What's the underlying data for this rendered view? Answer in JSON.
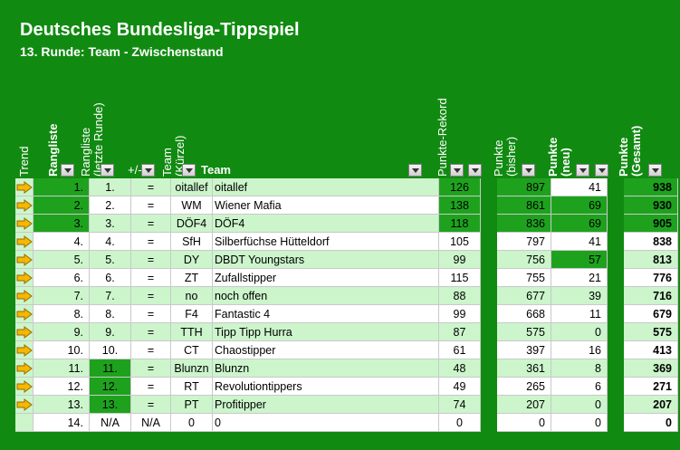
{
  "title": "Deutsches Bundesliga-Tippspiel",
  "subtitle": "13. Runde: Team - Zwischenstand",
  "headers": {
    "trend": "Trend",
    "rangliste": "Rangliste",
    "rangliste_letzte": "Rangliste\n(letzte Runde)",
    "plusminus": "+/-",
    "team_kurz": "Team\n(Kürzel)",
    "team": "Team",
    "punkte_rekord": "Punkte-Rekord",
    "punkte_bisher": "Punkte\n(bisher)",
    "punkte_neu": "Punkte\n(neu)",
    "punkte_gesamt": "Punkte\n(Gesamt)"
  },
  "colors": {
    "background": "#118a11",
    "light_row": "#ccf5cc",
    "highlight": "#1ea21e",
    "white": "#ffffff"
  },
  "trend_icon": "right-arrow-icon",
  "rows": [
    {
      "rank": "1.",
      "prev": "1.",
      "diff": "=",
      "short": "oitallef",
      "team": "oitallef",
      "rekord": "126",
      "bisher": "897",
      "neu": "41",
      "gesamt": "938"
    },
    {
      "rank": "2.",
      "prev": "2.",
      "diff": "=",
      "short": "WM",
      "team": "Wiener Mafia",
      "rekord": "138",
      "bisher": "861",
      "neu": "69",
      "gesamt": "930"
    },
    {
      "rank": "3.",
      "prev": "3.",
      "diff": "=",
      "short": "DÖF4",
      "team": "DÖF4",
      "rekord": "118",
      "bisher": "836",
      "neu": "69",
      "gesamt": "905"
    },
    {
      "rank": "4.",
      "prev": "4.",
      "diff": "=",
      "short": "SfH",
      "team": "Silberfüchse Hütteldorf",
      "rekord": "105",
      "bisher": "797",
      "neu": "41",
      "gesamt": "838"
    },
    {
      "rank": "5.",
      "prev": "5.",
      "diff": "=",
      "short": "DY",
      "team": "DBDT Youngstars",
      "rekord": "99",
      "bisher": "756",
      "neu": "57",
      "gesamt": "813"
    },
    {
      "rank": "6.",
      "prev": "6.",
      "diff": "=",
      "short": "ZT",
      "team": "Zufallstipper",
      "rekord": "115",
      "bisher": "755",
      "neu": "21",
      "gesamt": "776"
    },
    {
      "rank": "7.",
      "prev": "7.",
      "diff": "=",
      "short": "no",
      "team": "noch offen",
      "rekord": "88",
      "bisher": "677",
      "neu": "39",
      "gesamt": "716"
    },
    {
      "rank": "8.",
      "prev": "8.",
      "diff": "=",
      "short": "F4",
      "team": "Fantastic 4",
      "rekord": "99",
      "bisher": "668",
      "neu": "11",
      "gesamt": "679"
    },
    {
      "rank": "9.",
      "prev": "9.",
      "diff": "=",
      "short": "TTH",
      "team": "Tipp Tipp Hurra",
      "rekord": "87",
      "bisher": "575",
      "neu": "0",
      "gesamt": "575"
    },
    {
      "rank": "10.",
      "prev": "10.",
      "diff": "=",
      "short": "CT",
      "team": "Chaostipper",
      "rekord": "61",
      "bisher": "397",
      "neu": "16",
      "gesamt": "413"
    },
    {
      "rank": "11.",
      "prev": "11.",
      "diff": "=",
      "short": "Blunzn",
      "team": "Blunzn",
      "rekord": "48",
      "bisher": "361",
      "neu": "8",
      "gesamt": "369"
    },
    {
      "rank": "12.",
      "prev": "12.",
      "diff": "=",
      "short": "RT",
      "team": "Revolutiontippers",
      "rekord": "49",
      "bisher": "265",
      "neu": "6",
      "gesamt": "271"
    },
    {
      "rank": "13.",
      "prev": "13.",
      "diff": "=",
      "short": "PT",
      "team": "Profitipper",
      "rekord": "74",
      "bisher": "207",
      "neu": "0",
      "gesamt": "207"
    },
    {
      "rank": "14.",
      "prev": "N/A",
      "diff": "N/A",
      "short": "0",
      "team": "0",
      "rekord": "0",
      "bisher": "0",
      "neu": "0",
      "gesamt": "0"
    }
  ]
}
